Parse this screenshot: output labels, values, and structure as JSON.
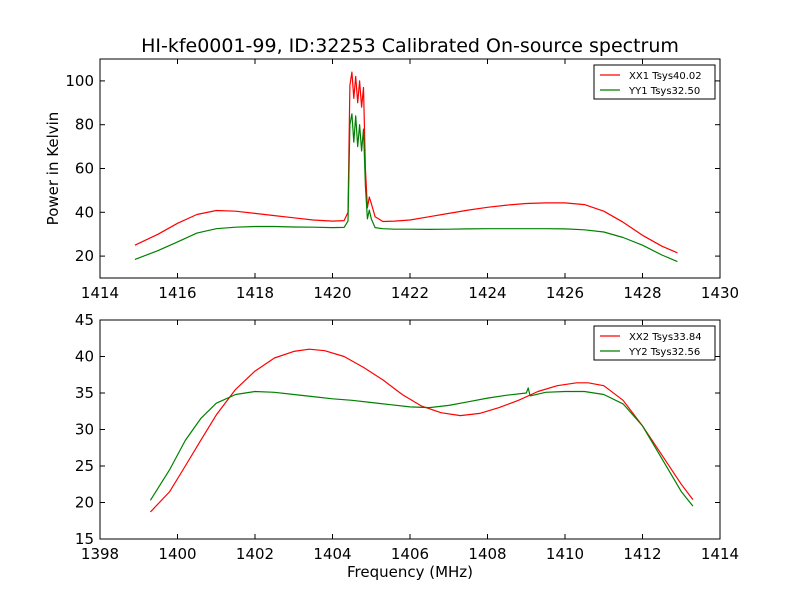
{
  "chart_data": [
    {
      "type": "line",
      "title": "HI-kfe0001-99, ID:32253 Calibrated On-source spectrum",
      "xlabel": "",
      "ylabel": "Power in Kelvin",
      "xlim": [
        1414,
        1430
      ],
      "ylim": [
        10,
        110
      ],
      "xticks": [
        1414,
        1416,
        1418,
        1420,
        1422,
        1424,
        1426,
        1428,
        1430
      ],
      "yticks": [
        20,
        40,
        60,
        80,
        100
      ],
      "legend_position": "top-right",
      "series": [
        {
          "name": "XX1 Tsys40.02",
          "color": "#ff0000",
          "x": [
            1414.9,
            1415.5,
            1416.0,
            1416.5,
            1417.0,
            1417.5,
            1418.0,
            1418.5,
            1419.0,
            1419.5,
            1420.0,
            1420.3,
            1420.4,
            1420.45,
            1420.5,
            1420.55,
            1420.6,
            1420.65,
            1420.7,
            1420.75,
            1420.8,
            1420.85,
            1420.9,
            1420.95,
            1421.0,
            1421.1,
            1421.3,
            1421.6,
            1422.0,
            1422.5,
            1423.0,
            1423.5,
            1424.0,
            1424.5,
            1425.0,
            1425.5,
            1426.0,
            1426.5,
            1427.0,
            1427.5,
            1428.0,
            1428.5,
            1428.9
          ],
          "y": [
            25,
            30,
            35,
            39,
            40.8,
            40.5,
            39.5,
            38.5,
            37.5,
            36.5,
            36,
            36.2,
            40,
            98,
            104,
            92,
            102,
            90,
            100,
            88,
            97,
            60,
            42,
            47,
            44,
            38,
            35.8,
            36,
            36.5,
            38,
            39.5,
            41,
            42.3,
            43.3,
            44,
            44.3,
            44.3,
            43.5,
            40.5,
            35.5,
            29.5,
            24.5,
            21.5
          ]
        },
        {
          "name": "YY1 Tsys32.50",
          "color": "#008000",
          "x": [
            1414.9,
            1415.5,
            1416.0,
            1416.5,
            1417.0,
            1417.5,
            1418.0,
            1418.5,
            1419.0,
            1419.5,
            1420.0,
            1420.3,
            1420.4,
            1420.45,
            1420.5,
            1420.55,
            1420.6,
            1420.65,
            1420.7,
            1420.75,
            1420.8,
            1420.85,
            1420.9,
            1420.95,
            1421.0,
            1421.1,
            1421.3,
            1421.6,
            1422.0,
            1422.5,
            1423.0,
            1423.5,
            1424.0,
            1424.5,
            1425.0,
            1425.5,
            1426.0,
            1426.5,
            1427.0,
            1427.5,
            1428.0,
            1428.5,
            1428.9
          ],
          "y": [
            18.5,
            22.5,
            26.5,
            30.5,
            32.5,
            33.2,
            33.5,
            33.5,
            33.3,
            33.2,
            33,
            33.1,
            36,
            80,
            85,
            72,
            84,
            70,
            80,
            68,
            78,
            52,
            37,
            41,
            37,
            33,
            32.5,
            32.3,
            32.3,
            32.2,
            32.3,
            32.4,
            32.5,
            32.5,
            32.5,
            32.5,
            32.4,
            32,
            31,
            28.5,
            25,
            20.5,
            17.5
          ]
        }
      ]
    },
    {
      "type": "line",
      "title": "",
      "xlabel": "Frequency (MHz)",
      "ylabel": "",
      "xlim": [
        1398,
        1414
      ],
      "ylim": [
        15,
        45
      ],
      "xticks": [
        1398,
        1400,
        1402,
        1404,
        1406,
        1408,
        1410,
        1412,
        1414
      ],
      "yticks": [
        15,
        20,
        25,
        30,
        35,
        40,
        45
      ],
      "legend_position": "top-right",
      "series": [
        {
          "name": "XX2 Tsys33.84",
          "color": "#ff0000",
          "x": [
            1399.3,
            1399.8,
            1400.2,
            1400.6,
            1401.0,
            1401.5,
            1402.0,
            1402.5,
            1403.0,
            1403.4,
            1403.8,
            1404.3,
            1404.8,
            1405.3,
            1405.8,
            1406.3,
            1406.8,
            1407.3,
            1407.8,
            1408.3,
            1408.8,
            1409.3,
            1409.8,
            1410.3,
            1410.6,
            1411.0,
            1411.5,
            1412.0,
            1412.5,
            1413.0,
            1413.3
          ],
          "y": [
            18.7,
            21.5,
            25,
            28.5,
            32,
            35.5,
            38,
            39.8,
            40.7,
            41,
            40.8,
            40,
            38.5,
            36.8,
            34.8,
            33.2,
            32.3,
            31.9,
            32.2,
            33,
            34,
            35.2,
            36,
            36.4,
            36.4,
            36,
            34,
            30.5,
            26.5,
            22.5,
            20.4
          ]
        },
        {
          "name": "YY2 Tsys32.56",
          "color": "#008000",
          "x": [
            1399.3,
            1399.8,
            1400.2,
            1400.6,
            1401.0,
            1401.5,
            1402.0,
            1402.5,
            1403.0,
            1403.5,
            1404.0,
            1404.5,
            1405.0,
            1405.5,
            1406.0,
            1406.5,
            1407.0,
            1407.5,
            1408.0,
            1408.5,
            1409.0,
            1409.05,
            1409.1,
            1409.5,
            1410.0,
            1410.5,
            1411.0,
            1411.5,
            1412.0,
            1412.5,
            1413.0,
            1413.3
          ],
          "y": [
            20.3,
            24.5,
            28.5,
            31.5,
            33.6,
            34.8,
            35.2,
            35.1,
            34.8,
            34.5,
            34.2,
            34,
            33.7,
            33.4,
            33.1,
            33,
            33.3,
            33.8,
            34.3,
            34.7,
            35,
            35.7,
            34.6,
            35.1,
            35.2,
            35.2,
            34.8,
            33.5,
            30.5,
            26,
            21.5,
            19.5
          ]
        }
      ]
    }
  ]
}
